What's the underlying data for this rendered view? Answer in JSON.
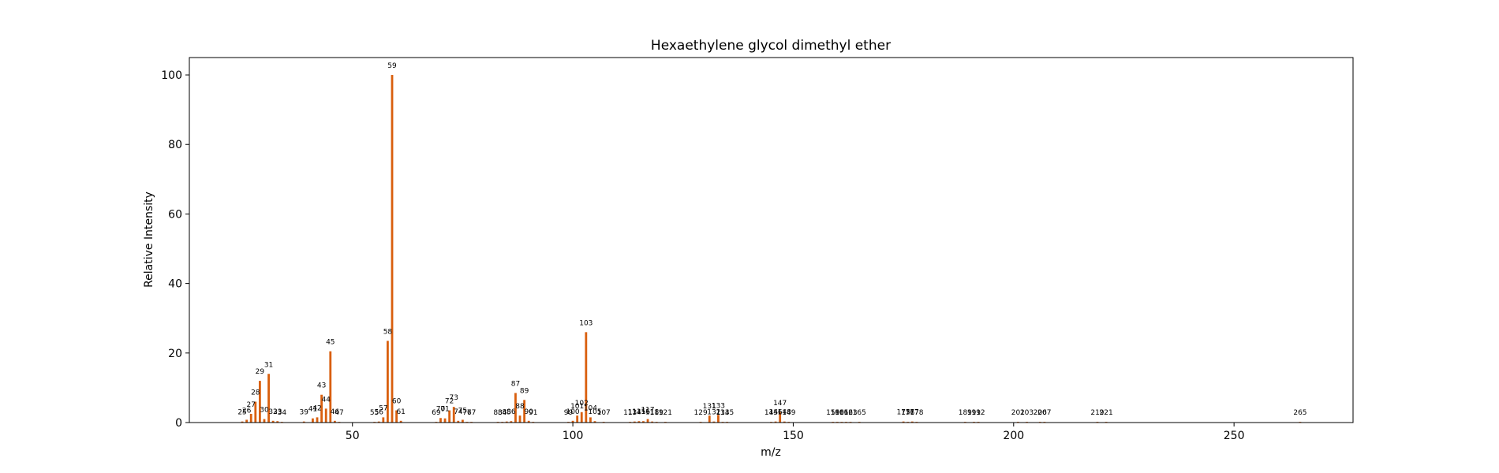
{
  "chart_data": {
    "type": "bar",
    "title": "Hexaethylene glycol dimethyl ether",
    "xlabel": "m/z",
    "ylabel": "Relative Intensity",
    "xlim": [
      13.0,
      277.0
    ],
    "ylim": [
      0,
      105
    ],
    "xticks": [
      50,
      100,
      150,
      200,
      250
    ],
    "yticks": [
      0,
      20,
      40,
      60,
      80,
      100
    ],
    "bar_color": "#d95f0e",
    "grid": false,
    "legend": "none",
    "peaks": [
      {
        "x": 25,
        "y": 0.3
      },
      {
        "x": 26,
        "y": 0.8
      },
      {
        "x": 27,
        "y": 2.5
      },
      {
        "x": 28,
        "y": 6.0
      },
      {
        "x": 29,
        "y": 12.0
      },
      {
        "x": 30,
        "y": 1.0
      },
      {
        "x": 31,
        "y": 14.0
      },
      {
        "x": 32,
        "y": 0.5
      },
      {
        "x": 33,
        "y": 0.4
      },
      {
        "x": 34,
        "y": 0.2
      },
      {
        "x": 39,
        "y": 0.3
      },
      {
        "x": 41,
        "y": 1.2
      },
      {
        "x": 42,
        "y": 1.5
      },
      {
        "x": 43,
        "y": 8.0
      },
      {
        "x": 44,
        "y": 4.0
      },
      {
        "x": 45,
        "y": 20.5
      },
      {
        "x": 46,
        "y": 0.5
      },
      {
        "x": 47,
        "y": 0.2
      },
      {
        "x": 55,
        "y": 0.2
      },
      {
        "x": 56,
        "y": 0.3
      },
      {
        "x": 57,
        "y": 1.5
      },
      {
        "x": 58,
        "y": 23.5
      },
      {
        "x": 59,
        "y": 100.0
      },
      {
        "x": 60,
        "y": 3.5
      },
      {
        "x": 61,
        "y": 0.5
      },
      {
        "x": 69,
        "y": 0.2
      },
      {
        "x": 70,
        "y": 1.3
      },
      {
        "x": 71,
        "y": 1.2
      },
      {
        "x": 72,
        "y": 3.5
      },
      {
        "x": 73,
        "y": 4.5
      },
      {
        "x": 74,
        "y": 0.5
      },
      {
        "x": 75,
        "y": 0.8
      },
      {
        "x": 76,
        "y": 0.2
      },
      {
        "x": 77,
        "y": 0.2
      },
      {
        "x": 83,
        "y": 0.2
      },
      {
        "x": 84,
        "y": 0.2
      },
      {
        "x": 85,
        "y": 0.3
      },
      {
        "x": 86,
        "y": 0.4
      },
      {
        "x": 87,
        "y": 8.5
      },
      {
        "x": 88,
        "y": 2.0
      },
      {
        "x": 89,
        "y": 6.5
      },
      {
        "x": 90,
        "y": 0.5
      },
      {
        "x": 91,
        "y": 0.2
      },
      {
        "x": 99,
        "y": 0.2
      },
      {
        "x": 100,
        "y": 0.5
      },
      {
        "x": 101,
        "y": 2.0
      },
      {
        "x": 102,
        "y": 3.0
      },
      {
        "x": 103,
        "y": 26.0
      },
      {
        "x": 104,
        "y": 1.5
      },
      {
        "x": 105,
        "y": 0.4
      },
      {
        "x": 107,
        "y": 0.2
      },
      {
        "x": 113,
        "y": 0.2
      },
      {
        "x": 114,
        "y": 0.3
      },
      {
        "x": 115,
        "y": 0.4
      },
      {
        "x": 116,
        "y": 0.4
      },
      {
        "x": 117,
        "y": 1.0
      },
      {
        "x": 118,
        "y": 0.3
      },
      {
        "x": 119,
        "y": 0.2
      },
      {
        "x": 121,
        "y": 0.2
      },
      {
        "x": 129,
        "y": 0.2
      },
      {
        "x": 131,
        "y": 2.0
      },
      {
        "x": 132,
        "y": 0.3
      },
      {
        "x": 133,
        "y": 2.2
      },
      {
        "x": 134,
        "y": 0.2
      },
      {
        "x": 135,
        "y": 0.2
      },
      {
        "x": 145,
        "y": 0.2
      },
      {
        "x": 146,
        "y": 0.3
      },
      {
        "x": 147,
        "y": 3.0
      },
      {
        "x": 148,
        "y": 0.3
      },
      {
        "x": 149,
        "y": 0.2
      },
      {
        "x": 159,
        "y": 0.2
      },
      {
        "x": 160,
        "y": 0.2
      },
      {
        "x": 161,
        "y": 0.2
      },
      {
        "x": 162,
        "y": 0.2
      },
      {
        "x": 163,
        "y": 0.2
      },
      {
        "x": 165,
        "y": 0.2
      },
      {
        "x": 175,
        "y": 0.3
      },
      {
        "x": 176,
        "y": 0.2
      },
      {
        "x": 177,
        "y": 0.3
      },
      {
        "x": 178,
        "y": 0.2
      },
      {
        "x": 189,
        "y": 0.2
      },
      {
        "x": 191,
        "y": 0.2
      },
      {
        "x": 192,
        "y": 0.2
      },
      {
        "x": 201,
        "y": 0.2
      },
      {
        "x": 203,
        "y": 0.2
      },
      {
        "x": 206,
        "y": 0.2
      },
      {
        "x": 207,
        "y": 0.2
      },
      {
        "x": 219,
        "y": 0.2
      },
      {
        "x": 221,
        "y": 0.2
      },
      {
        "x": 265,
        "y": 0.2
      }
    ]
  }
}
